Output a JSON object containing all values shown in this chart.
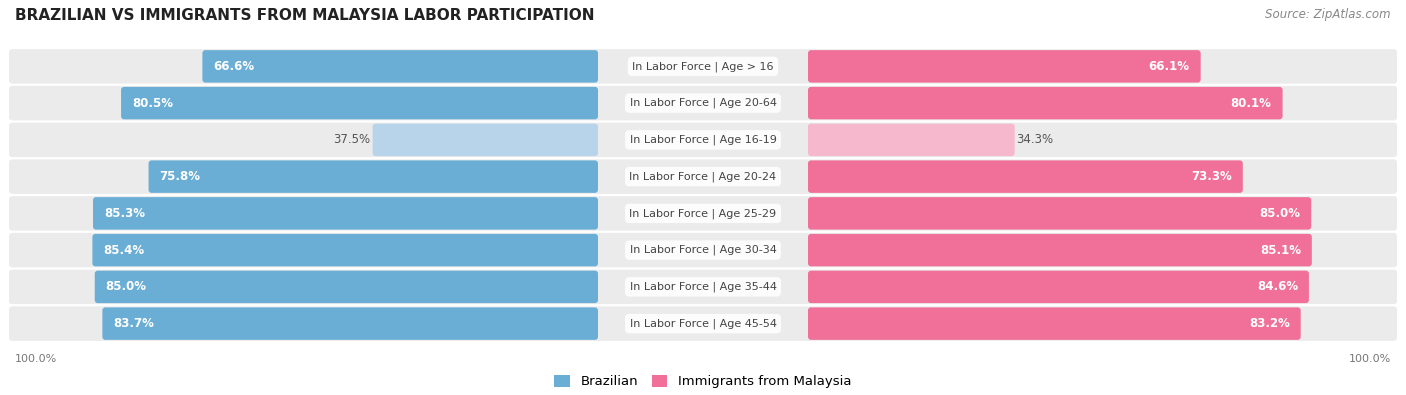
{
  "title": "BRAZILIAN VS IMMIGRANTS FROM MALAYSIA LABOR PARTICIPATION",
  "source": "Source: ZipAtlas.com",
  "categories": [
    "In Labor Force | Age > 16",
    "In Labor Force | Age 20-64",
    "In Labor Force | Age 16-19",
    "In Labor Force | Age 20-24",
    "In Labor Force | Age 25-29",
    "In Labor Force | Age 30-34",
    "In Labor Force | Age 35-44",
    "In Labor Force | Age 45-54"
  ],
  "brazilian_values": [
    66.6,
    80.5,
    37.5,
    75.8,
    85.3,
    85.4,
    85.0,
    83.7
  ],
  "immigrant_values": [
    66.1,
    80.1,
    34.3,
    73.3,
    85.0,
    85.1,
    84.6,
    83.2
  ],
  "brazilian_color_full": "#6aaed6",
  "brazilian_color_light": "#b8d4ea",
  "immigrant_color_full": "#f07099",
  "immigrant_color_light": "#f5b8cc",
  "bg_color": "#f5f5f5",
  "max_value": 100.0,
  "legend_labels": [
    "Brazilian",
    "Immigrants from Malaysia"
  ],
  "figsize": [
    14.06,
    3.95
  ],
  "dpi": 100,
  "threshold": 50.0,
  "row_bg_color": "#ebebeb"
}
